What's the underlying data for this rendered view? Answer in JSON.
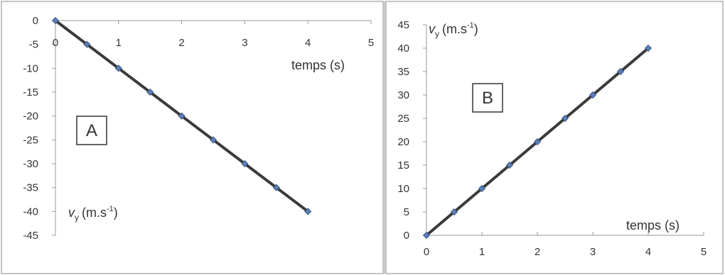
{
  "chart_data": [
    {
      "type": "line",
      "panel_label": "A",
      "x": [
        0,
        0.5,
        1,
        1.5,
        2,
        2.5,
        3,
        3.5,
        4
      ],
      "series": [
        {
          "values": [
            0,
            -5,
            -10,
            -15,
            -20,
            -25,
            -30,
            -35,
            -40
          ]
        }
      ],
      "xlabel": "temps (s)",
      "ylabel_main": "v",
      "ylabel_sub": "y",
      "ylabel_unit_base": "(m.s",
      "ylabel_unit_exp": "-1",
      "ylabel_unit_close": ")",
      "xlim": [
        0,
        5
      ],
      "ylim": [
        -45,
        0
      ],
      "xticks": [
        "0",
        "1",
        "2",
        "3",
        "4",
        "5"
      ],
      "yticks": [
        "0",
        "-5",
        "-10",
        "-15",
        "-20",
        "-25",
        "-30",
        "-35",
        "-40",
        "-45"
      ],
      "grid": false,
      "colors": {
        "line": "#3a3a3a",
        "marker": "#5b7fb5",
        "axis": "#9a9a9a"
      }
    },
    {
      "type": "line",
      "panel_label": "B",
      "x": [
        0,
        0.5,
        1,
        1.5,
        2,
        2.5,
        3,
        3.5,
        4
      ],
      "series": [
        {
          "values": [
            0,
            5,
            10,
            15,
            20,
            25,
            30,
            35,
            40
          ]
        }
      ],
      "xlabel": "temps (s)",
      "ylabel_main": "v",
      "ylabel_sub": "y",
      "ylabel_unit_base": "(m.s",
      "ylabel_unit_exp": "-1",
      "ylabel_unit_close": ")",
      "xlim": [
        0,
        5
      ],
      "ylim": [
        0,
        45
      ],
      "xticks": [
        "0",
        "1",
        "2",
        "3",
        "4",
        "5"
      ],
      "yticks": [
        "0",
        "5",
        "10",
        "15",
        "20",
        "25",
        "30",
        "35",
        "40",
        "45"
      ],
      "grid": false,
      "colors": {
        "line": "#3a3a3a",
        "marker": "#5b7fb5",
        "axis": "#9a9a9a"
      }
    }
  ]
}
